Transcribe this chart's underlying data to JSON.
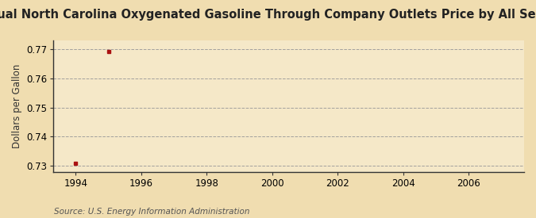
{
  "title": "Annual North Carolina Oxygenated Gasoline Through Company Outlets Price by All Sellers",
  "ylabel": "Dollars per Gallon",
  "source": "Source: U.S. Energy Information Administration",
  "x_data": [
    1994,
    1995
  ],
  "y_data": [
    0.731,
    0.769
  ],
  "xlim": [
    1993.3,
    2007.7
  ],
  "ylim": [
    0.728,
    0.773
  ],
  "xticks": [
    1994,
    1996,
    1998,
    2000,
    2002,
    2004,
    2006
  ],
  "yticks": [
    0.73,
    0.74,
    0.75,
    0.76,
    0.77
  ],
  "bg_color": "#f0ddb0",
  "plot_bg_color": "#f5e8c8",
  "marker_color": "#aa1111",
  "grid_color": "#999999",
  "title_fontsize": 10.5,
  "axis_fontsize": 8.5,
  "tick_fontsize": 8.5,
  "source_fontsize": 7.5
}
